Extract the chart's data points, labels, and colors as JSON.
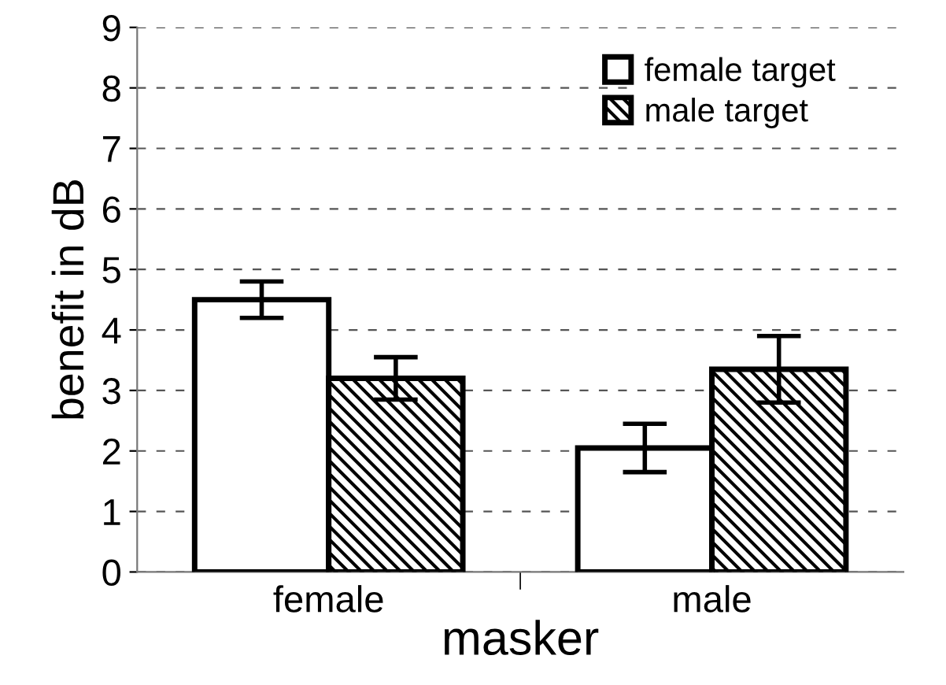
{
  "chart_data": {
    "type": "bar",
    "xlabel": "masker",
    "ylabel": "benefit in dB",
    "categories": [
      "female",
      "male"
    ],
    "series": [
      {
        "name": "female target",
        "color": "#ffffff",
        "values": [
          4.5,
          2.05
        ],
        "errors": [
          0.3,
          0.4
        ]
      },
      {
        "name": "male target",
        "color": "#000000",
        "values": [
          3.2,
          3.35
        ],
        "errors": [
          0.35,
          0.55
        ]
      }
    ],
    "ylim": [
      0,
      9
    ],
    "yticks": [
      0,
      1,
      2,
      3,
      4,
      5,
      6,
      7,
      8,
      9
    ],
    "grid": "y",
    "legend": "top right"
  }
}
